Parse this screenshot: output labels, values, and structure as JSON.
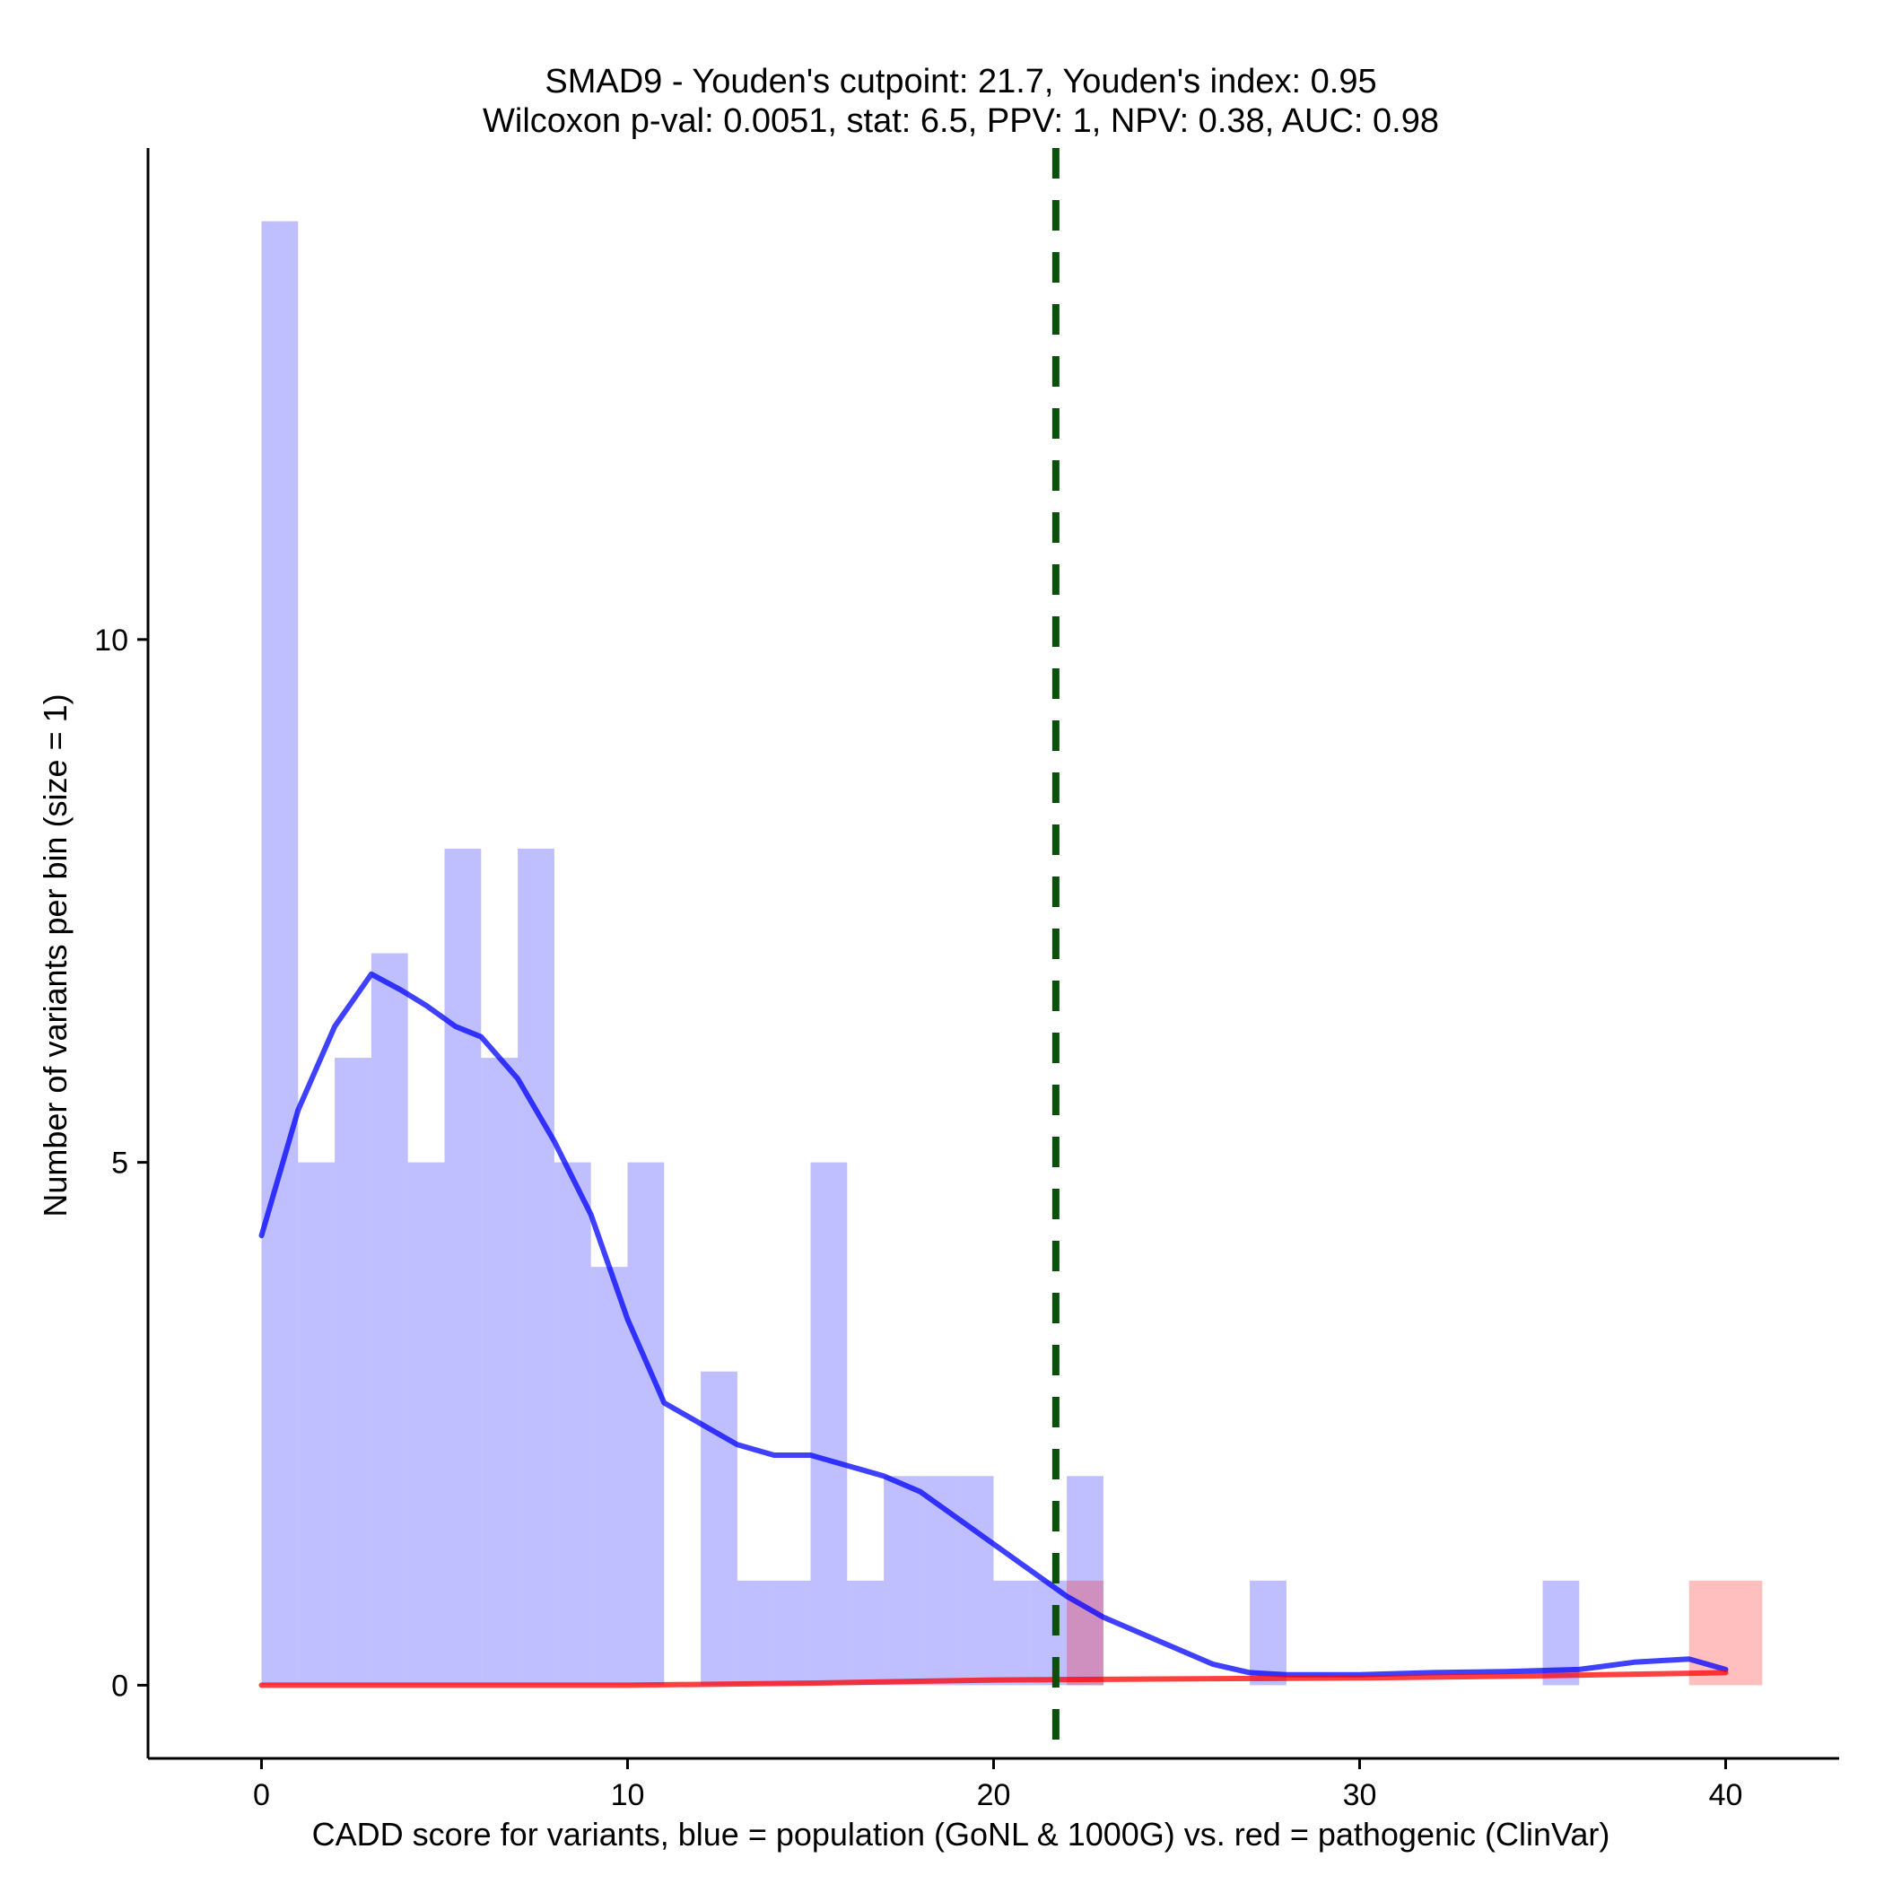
{
  "chart_data": {
    "type": "bar",
    "title": "SMAD9 - Youden's cutpoint: 21.7, Youden's index: 0.95",
    "subtitle": "Wilcoxon p-val: 0.0051, stat: 6.5, PPV: 1, NPV: 0.38, AUC: 0.98",
    "xlabel": "CADD score for variants, blue = population (GoNL & 1000G) vs. red = pathogenic (ClinVar)",
    "ylabel": "Number of variants per bin (size = 1)",
    "xlim": [
      -3.1,
      43.1
    ],
    "ylim": [
      -0.7,
      14.7
    ],
    "xticks": [
      0,
      10,
      20,
      30,
      40
    ],
    "yticks": [
      0,
      5,
      10
    ],
    "grid": false,
    "legend": "none",
    "bin_width": 1,
    "cutpoint": 21.7,
    "series": [
      {
        "name": "population (GoNL & 1000G)",
        "color": "#0000ff",
        "bin_starts": [
          0,
          1,
          2,
          3,
          4,
          5,
          6,
          7,
          8,
          9,
          10,
          12,
          13,
          14,
          15,
          16,
          17,
          18,
          19,
          20,
          21,
          22,
          27,
          35
        ],
        "counts": [
          14,
          5,
          6,
          7,
          5,
          8,
          6,
          8,
          5,
          4,
          5,
          3,
          1,
          1,
          5,
          1,
          2,
          2,
          2,
          1,
          1,
          2,
          1,
          1
        ]
      },
      {
        "name": "pathogenic (ClinVar)",
        "color": "#ff0000",
        "bin_starts": [
          22,
          27,
          39,
          40
        ],
        "counts": [
          1,
          0,
          1,
          1
        ]
      }
    ],
    "density_lines": [
      {
        "name": "population (GoNL & 1000G)",
        "color": "#0000ff",
        "x": [
          0,
          1,
          2,
          3,
          3.8,
          4.5,
          5.3,
          6,
          7,
          8,
          9,
          10,
          11,
          12,
          13,
          14,
          15,
          16,
          17,
          18,
          19,
          20,
          21,
          22,
          23,
          24,
          25,
          26,
          27,
          28,
          30,
          32,
          34,
          36,
          37.5,
          39,
          40
        ],
        "y": [
          4.3,
          5.5,
          6.3,
          6.8,
          6.65,
          6.5,
          6.3,
          6.2,
          5.8,
          5.2,
          4.5,
          3.5,
          2.7,
          2.5,
          2.3,
          2.2,
          2.2,
          2.1,
          2.0,
          1.85,
          1.6,
          1.35,
          1.1,
          0.85,
          0.65,
          0.5,
          0.35,
          0.2,
          0.12,
          0.1,
          0.1,
          0.12,
          0.13,
          0.15,
          0.22,
          0.25,
          0.15
        ]
      },
      {
        "name": "pathogenic (ClinVar)",
        "color": "#ff0000",
        "x": [
          0,
          5,
          10,
          15,
          20,
          25,
          30,
          35,
          40
        ],
        "y": [
          0,
          0,
          0,
          0.02,
          0.05,
          0.06,
          0.07,
          0.09,
          0.12
        ]
      }
    ]
  }
}
